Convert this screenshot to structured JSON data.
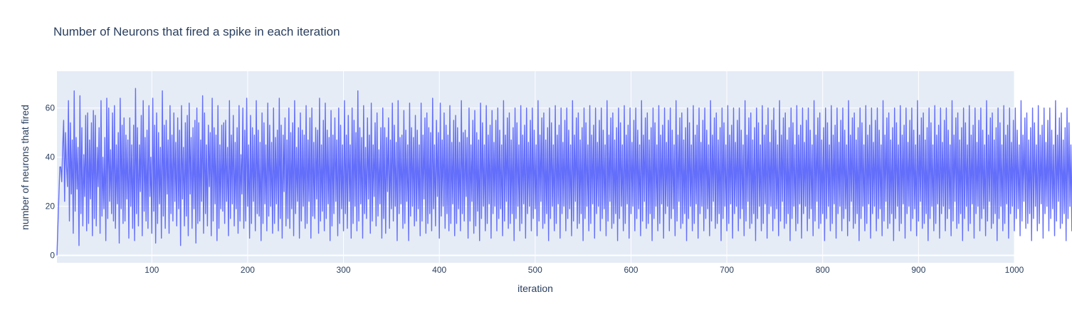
{
  "chart_data": {
    "type": "line",
    "title": "Number of Neurons that fired a spike in each iteration",
    "xlabel": "iteration",
    "ylabel": "number of neurons that fired",
    "xlim": [
      1,
      1000
    ],
    "ylim": [
      -3,
      75
    ],
    "x_ticks": [
      100,
      200,
      300,
      400,
      500,
      600,
      700,
      800,
      900,
      1000
    ],
    "y_ticks": [
      0,
      20,
      40,
      60
    ],
    "grid": true,
    "legend": "none",
    "series": [
      {
        "color": "#636efa",
        "x_start": 1,
        "x_step": 1,
        "values": [
          0,
          12,
          24,
          36,
          36,
          30,
          44,
          55,
          22,
          50,
          36,
          28,
          63,
          14,
          54,
          25,
          47,
          9,
          67,
          18,
          48,
          27,
          44,
          4,
          65,
          17,
          52,
          12,
          41,
          24,
          57,
          10,
          58,
          13,
          47,
          23,
          54,
          8,
          59,
          15,
          57,
          12,
          44,
          28,
          52,
          9,
          63,
          16,
          40,
          19,
          48,
          6,
          64,
          15,
          60,
          22,
          43,
          17,
          58,
          14,
          61,
          11,
          45,
          21,
          50,
          5,
          64,
          19,
          53,
          13,
          56,
          14,
          49,
          23,
          47,
          7,
          56,
          20,
          45,
          11,
          53,
          6,
          68,
          17,
          52,
          12,
          45,
          26,
          57,
          8,
          63,
          18,
          48,
          14,
          51,
          11,
          61,
          24,
          40,
          9,
          64,
          18,
          53,
          5,
          58,
          13,
          50,
          21,
          44,
          7,
          67,
          16,
          53,
          11,
          55,
          25,
          47,
          9,
          61,
          17,
          49,
          14,
          58,
          22,
          46,
          12,
          56,
          19,
          51,
          4,
          61,
          23,
          44,
          12,
          54,
          16,
          57,
          8,
          62,
          25,
          48,
          11,
          52,
          19,
          55,
          5,
          60,
          13,
          54,
          14,
          47,
          22,
          65,
          9,
          58,
          17,
          45,
          12,
          53,
          28,
          50,
          8,
          64,
          14,
          52,
          21,
          49,
          6,
          61,
          11,
          45,
          19,
          53,
          18,
          54,
          13,
          55,
          22,
          44,
          8,
          63,
          15,
          49,
          21,
          57,
          12,
          46,
          19,
          52,
          9,
          61,
          14,
          41,
          25,
          60,
          11,
          51,
          14,
          64,
          20,
          45,
          7,
          57,
          13,
          52,
          22,
          49,
          10,
          63,
          17,
          51,
          16,
          46,
          6,
          58,
          13,
          54,
          21,
          45,
          10,
          62,
          16,
          53,
          20,
          46,
          9,
          60,
          13,
          48,
          21,
          51,
          10,
          64,
          15,
          53,
          7,
          49,
          26,
          56,
          12,
          47,
          15,
          60,
          11,
          50,
          19,
          54,
          8,
          63,
          17,
          44,
          22,
          52,
          7,
          58,
          14,
          51,
          20,
          49,
          11,
          61,
          13,
          47,
          22,
          56,
          7,
          60,
          16,
          46,
          15,
          52,
          23,
          51,
          9,
          64,
          14,
          45,
          18,
          55,
          10,
          62,
          15,
          51,
          21,
          48,
          6,
          59,
          12,
          49,
          17,
          56,
          22,
          47,
          8,
          60,
          13,
          53,
          19,
          45,
          10,
          63,
          17,
          49,
          11,
          57,
          22,
          45,
          7,
          60,
          13,
          55,
          20,
          50,
          10,
          67,
          14,
          52,
          21,
          48,
          7,
          61,
          17,
          44,
          15,
          56,
          23,
          49,
          9,
          62,
          14,
          45,
          24,
          54,
          12,
          58,
          16,
          43,
          21,
          52,
          7,
          60,
          15,
          52,
          9,
          48,
          26,
          56,
          11,
          47,
          19,
          62,
          14,
          53,
          20,
          46,
          6,
          63,
          17,
          48,
          21,
          49,
          11,
          59,
          13,
          51,
          22,
          45,
          6,
          62,
          16,
          52,
          20,
          48,
          12,
          57,
          14,
          51,
          19,
          45,
          8,
          62,
          14,
          49,
          23,
          56,
          9,
          58,
          13,
          52,
          17,
          50,
          10,
          64,
          19,
          45,
          12,
          55,
          24,
          50,
          7,
          62,
          16,
          47,
          20,
          58,
          11,
          53,
          17,
          49,
          10,
          61,
          13,
          46,
          21,
          55,
          8,
          57,
          13,
          52,
          19,
          46,
          10,
          63,
          17,
          50,
          14,
          51,
          24,
          48,
          7,
          60,
          14,
          45,
          22,
          55,
          9,
          59,
          12,
          50,
          18,
          47,
          6,
          62,
          15,
          54,
          20,
          45,
          10,
          61,
          13,
          49,
          21,
          53,
          7,
          59,
          17,
          46,
          20,
          55,
          10,
          60,
          15,
          51,
          19,
          45,
          8,
          63,
          14,
          49,
          22,
          56,
          11,
          58,
          13,
          47,
          17,
          52,
          6,
          60,
          15,
          54,
          20,
          45,
          10,
          61,
          13,
          49,
          21,
          53,
          7,
          60,
          17,
          46,
          20,
          55,
          10,
          60,
          15,
          51,
          19,
          45,
          8,
          63,
          14,
          49,
          22,
          56,
          11,
          58,
          13,
          47,
          17,
          52,
          6,
          60,
          15,
          54,
          20,
          45,
          10,
          61,
          13,
          49,
          21,
          53,
          7,
          60,
          17,
          46,
          20,
          55,
          10,
          60,
          15,
          51,
          19,
          45,
          8,
          63,
          14,
          49,
          22,
          56,
          11,
          58,
          13,
          47,
          17,
          52,
          6,
          60,
          15,
          54,
          20,
          45,
          10,
          61,
          13,
          49,
          21,
          53,
          7,
          60,
          17,
          46,
          20,
          55,
          10,
          60,
          15,
          51,
          19,
          45,
          8,
          63,
          14,
          49,
          22,
          56,
          11,
          58,
          13,
          47,
          17,
          52,
          6,
          60,
          15,
          54,
          20,
          45,
          10,
          61,
          13,
          49,
          21,
          53,
          7,
          60,
          17,
          46,
          20,
          55,
          10,
          60,
          15,
          51,
          19,
          45,
          8,
          63,
          14,
          49,
          22,
          56,
          11,
          58,
          13,
          47,
          17,
          52,
          6,
          60,
          15,
          54,
          20,
          45,
          10,
          61,
          13,
          49,
          21,
          53,
          7,
          60,
          17,
          46,
          20,
          55,
          10,
          60,
          15,
          51,
          19,
          45,
          8,
          63,
          14,
          49,
          22,
          56,
          11,
          58,
          13,
          47,
          17,
          52,
          6,
          60,
          15,
          54,
          20,
          45,
          10,
          61,
          13,
          49,
          21,
          53,
          7,
          60,
          17,
          46,
          20,
          55,
          10,
          60,
          15,
          51,
          19,
          45,
          8,
          63,
          14,
          49,
          22,
          56,
          11,
          58,
          13,
          47,
          17,
          52,
          6,
          60,
          15,
          54,
          20,
          45,
          10,
          61,
          13,
          49,
          21,
          53,
          7,
          60,
          17,
          46,
          20,
          55,
          10,
          60,
          15,
          51,
          19,
          45,
          8,
          63,
          14,
          49,
          22,
          56,
          11,
          58,
          13,
          47,
          17,
          52,
          6,
          60,
          15,
          54,
          20,
          45,
          10,
          61,
          13,
          49,
          21,
          53,
          7,
          60,
          17,
          46,
          20,
          55,
          10,
          60,
          15,
          51,
          19,
          45,
          8,
          63,
          14,
          49,
          22,
          56,
          11,
          58,
          13,
          47,
          17,
          52,
          6,
          60,
          15,
          54,
          20,
          45,
          10,
          61,
          13,
          49,
          21,
          53,
          7,
          60,
          17,
          46,
          20,
          55,
          10,
          60,
          15,
          51,
          19,
          45,
          8,
          63,
          14,
          49,
          22,
          56,
          11,
          58,
          13,
          47,
          17,
          52,
          6,
          60,
          15,
          54,
          20,
          45,
          10,
          61,
          13,
          49,
          21,
          53,
          7,
          60,
          17,
          46,
          20,
          55,
          10,
          60,
          15,
          51,
          19,
          45,
          8,
          63,
          14,
          49,
          22,
          56,
          11,
          58,
          13,
          47,
          17,
          52,
          6,
          60,
          15,
          54,
          20,
          45,
          10,
          61,
          13,
          49,
          21,
          53,
          7,
          60,
          17,
          46,
          20,
          55,
          10,
          60,
          15,
          51,
          19,
          45,
          8,
          63,
          14,
          49,
          22,
          56,
          11,
          58,
          13,
          47,
          17,
          52,
          6,
          60,
          15,
          54,
          20,
          45,
          10,
          61,
          13,
          49,
          21,
          53,
          7,
          60,
          17,
          46,
          20,
          55,
          10,
          60,
          15,
          51,
          19,
          45,
          8,
          63,
          14,
          49,
          22,
          56,
          11,
          58,
          13,
          47,
          17,
          52,
          6,
          60,
          15,
          54,
          20,
          45,
          10,
          61,
          13,
          49,
          21,
          53,
          7,
          60,
          17,
          46,
          20,
          55,
          10,
          60,
          15,
          51,
          19,
          45,
          8,
          63,
          14,
          49,
          22,
          56,
          11,
          58,
          13,
          47,
          17,
          52,
          6,
          60,
          15,
          54,
          20,
          45,
          10,
          61,
          13,
          49,
          21,
          53,
          7,
          60,
          17,
          46,
          20,
          55,
          10,
          60,
          15,
          51,
          19,
          45,
          8,
          63,
          14,
          49,
          22,
          56,
          11,
          58,
          13,
          47,
          17,
          52,
          6,
          60,
          15,
          54,
          20,
          45,
          10,
          61,
          13,
          49,
          21,
          53,
          7,
          60,
          17,
          46,
          20,
          55,
          10,
          60,
          15,
          51,
          19,
          45,
          8,
          63,
          14,
          49,
          22,
          56,
          11,
          58,
          13,
          47,
          17,
          52,
          6,
          60,
          15,
          54,
          20,
          45,
          10,
          61,
          13,
          49,
          21,
          53,
          7,
          60,
          17,
          46,
          20,
          55,
          10,
          60,
          15,
          51,
          19,
          45,
          8,
          63,
          14,
          49,
          22,
          56,
          11,
          58,
          13,
          47,
          17,
          52,
          6,
          60,
          15,
          54,
          20,
          45,
          10,
          61,
          13,
          49,
          21,
          53,
          7,
          60,
          17,
          46,
          20,
          55,
          10,
          60,
          15,
          51,
          19,
          45,
          8,
          63,
          14,
          49,
          22,
          56,
          11,
          58,
          13,
          47,
          17,
          52,
          6,
          60,
          15,
          54,
          20,
          45,
          10,
          61,
          13,
          49,
          21,
          53,
          7,
          60,
          17,
          46,
          20,
          55,
          10,
          60,
          15,
          51,
          19,
          45,
          8,
          63,
          14,
          49,
          22,
          56,
          11,
          58,
          13,
          47,
          17,
          52,
          6,
          60,
          15,
          54,
          20,
          45,
          10,
          61,
          13,
          49,
          21,
          53,
          7,
          60,
          17,
          46,
          20,
          55,
          10,
          60,
          15,
          51,
          19,
          45,
          8,
          63,
          14,
          49,
          22,
          56,
          11,
          58,
          13,
          47,
          17,
          52,
          6,
          60,
          15,
          54,
          20,
          45,
          10,
          61
        ]
      }
    ]
  }
}
